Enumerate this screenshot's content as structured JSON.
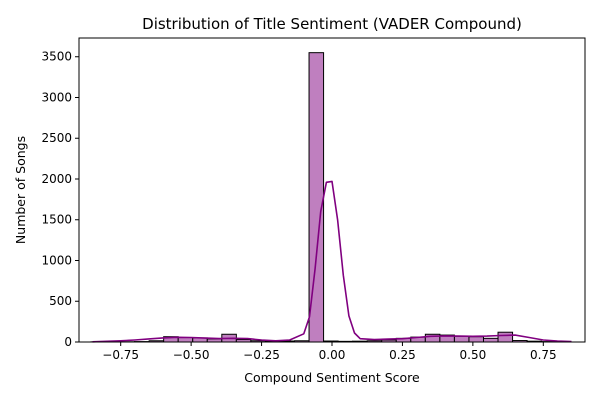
{
  "chart_data": {
    "type": "histogram",
    "title": "Distribution of Title Sentiment (VADER Compound)",
    "xlabel": "Compound Sentiment Score",
    "ylabel": "Number of Songs",
    "xlim": [
      -0.898,
      0.898
    ],
    "ylim": [
      0,
      3730
    ],
    "xticks": [
      -0.75,
      -0.5,
      -0.25,
      0.0,
      0.25,
      0.5,
      0.75
    ],
    "xtick_labels": [
      "−0.75",
      "−0.50",
      "−0.25",
      "0.00",
      "0.25",
      "0.50",
      "0.75"
    ],
    "yticks": [
      0,
      500,
      1000,
      1500,
      2000,
      2500,
      3000,
      3500
    ],
    "ytick_labels": [
      "0",
      "500",
      "1000",
      "1500",
      "2000",
      "2500",
      "3000",
      "3500"
    ],
    "bin_edges": [
      -0.8555,
      -0.8039,
      -0.7523,
      -0.7007,
      -0.6491,
      -0.5975,
      -0.5459,
      -0.4943,
      -0.4427,
      -0.3911,
      -0.3395,
      -0.2879,
      -0.2363,
      -0.1847,
      -0.1331,
      -0.0815,
      -0.0299,
      0.0217,
      0.0733,
      0.1249,
      0.1765,
      0.2281,
      0.2797,
      0.3313,
      0.3829,
      0.4345,
      0.4861,
      0.5377,
      0.5893,
      0.6409,
      0.6925,
      0.7441,
      0.7957,
      0.8473
    ],
    "counts": [
      2,
      1,
      3,
      5,
      15,
      65,
      55,
      50,
      38,
      95,
      30,
      15,
      10,
      12,
      15,
      3550,
      12,
      8,
      10,
      15,
      25,
      45,
      60,
      95,
      85,
      70,
      65,
      45,
      120,
      18,
      10,
      5,
      3
    ],
    "kde": {
      "x": [
        -0.85,
        -0.8,
        -0.75,
        -0.7,
        -0.65,
        -0.6,
        -0.55,
        -0.5,
        -0.45,
        -0.4,
        -0.35,
        -0.3,
        -0.25,
        -0.2,
        -0.15,
        -0.1,
        -0.08,
        -0.06,
        -0.04,
        -0.02,
        0.0,
        0.02,
        0.04,
        0.06,
        0.08,
        0.1,
        0.15,
        0.2,
        0.25,
        0.3,
        0.35,
        0.4,
        0.45,
        0.5,
        0.55,
        0.6,
        0.65,
        0.7,
        0.75,
        0.8,
        0.85
      ],
      "y": [
        3,
        8,
        15,
        25,
        38,
        50,
        58,
        55,
        48,
        42,
        45,
        42,
        25,
        15,
        25,
        100,
        310,
        900,
        1600,
        1960,
        1970,
        1500,
        820,
        320,
        110,
        40,
        30,
        35,
        40,
        55,
        70,
        75,
        72,
        70,
        72,
        80,
        85,
        55,
        25,
        12,
        5
      ]
    },
    "bar_color": "#bf7fbf",
    "bar_edge_color": "#000000",
    "kde_color": "#800080",
    "grid": false
  }
}
